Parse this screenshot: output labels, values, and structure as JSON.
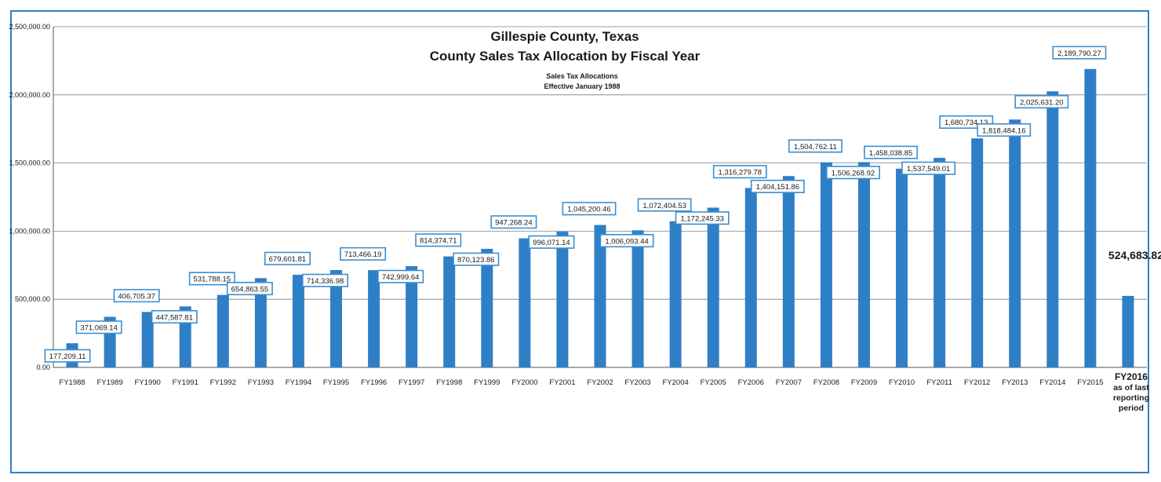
{
  "colors": {
    "bar": "#2f7fc7",
    "frame": "#2f7fc7",
    "label_border": "#3a8fd2",
    "grid": "#7f7f7f",
    "text": "#1a1a1a"
  },
  "chart_data": {
    "type": "bar",
    "title": "Gillespie County, Texas",
    "subtitle": "County Sales Tax Allocation by Fiscal Year",
    "note_line1": "Sales Tax Allocations",
    "note_line2": "Effective January 1988",
    "ylim": [
      0,
      2500000
    ],
    "y_ticks": [
      "0.00",
      "500,000.00",
      "1,000,000.00",
      "1,500,000.00",
      "2,000,000.00",
      "2,500,000.00"
    ],
    "y_tick_values": [
      0,
      500000,
      1000000,
      1500000,
      2000000,
      2500000
    ],
    "grid": true,
    "categories": [
      "FY1988",
      "FY1989",
      "FY1990",
      "FY1991",
      "FY1992",
      "FY1993",
      "FY1994",
      "FY1995",
      "FY1996",
      "FY1997",
      "FY1998",
      "FY1999",
      "FY2000",
      "FY2001",
      "FY2002",
      "FY2003",
      "FY2004",
      "FY2005",
      "FY2006",
      "FY2007",
      "FY2008",
      "FY2009",
      "FY2010",
      "FY2011",
      "FY2012",
      "FY2013",
      "FY2014",
      "FY2015",
      "FY2016"
    ],
    "last_category_lines": [
      "FY2016",
      "as of last",
      "reporting",
      "period"
    ],
    "values": [
      177209.11,
      371069.14,
      406705.37,
      447587.81,
      531788.15,
      654863.55,
      679601.81,
      714336.98,
      713466.19,
      742999.64,
      814374.71,
      870123.86,
      947268.24,
      996071.14,
      1045200.46,
      1006093.44,
      1072404.53,
      1172245.33,
      1316279.78,
      1404151.86,
      1504762.11,
      1506268.92,
      1458038.85,
      1537549.01,
      1680734.13,
      1818484.16,
      2025631.2,
      2189790.27,
      524683.82
    ],
    "data_labels": [
      "177,209.11",
      "371,069.14",
      "406,705.37",
      "447,587.81",
      "531,788.15",
      "654,863.55",
      "679,601.81",
      "714,336.98",
      "713,466.19",
      "742,999.64",
      "814,374.71",
      "870,123.86",
      "947,268.24",
      "996,071.14",
      "1,045,200.46",
      "1,006,093.44",
      "1,072,404.53",
      "1,172,245.33",
      "1,316,279.78",
      "1,404,151.86",
      "1,504,762.11",
      "1,506,268.92",
      "1,458,038.85",
      "1,537,549.01",
      "1,680,734.13",
      "1,818,484.16",
      "2,025,631.20",
      "2,189,790.27",
      "524,683.82"
    ]
  }
}
